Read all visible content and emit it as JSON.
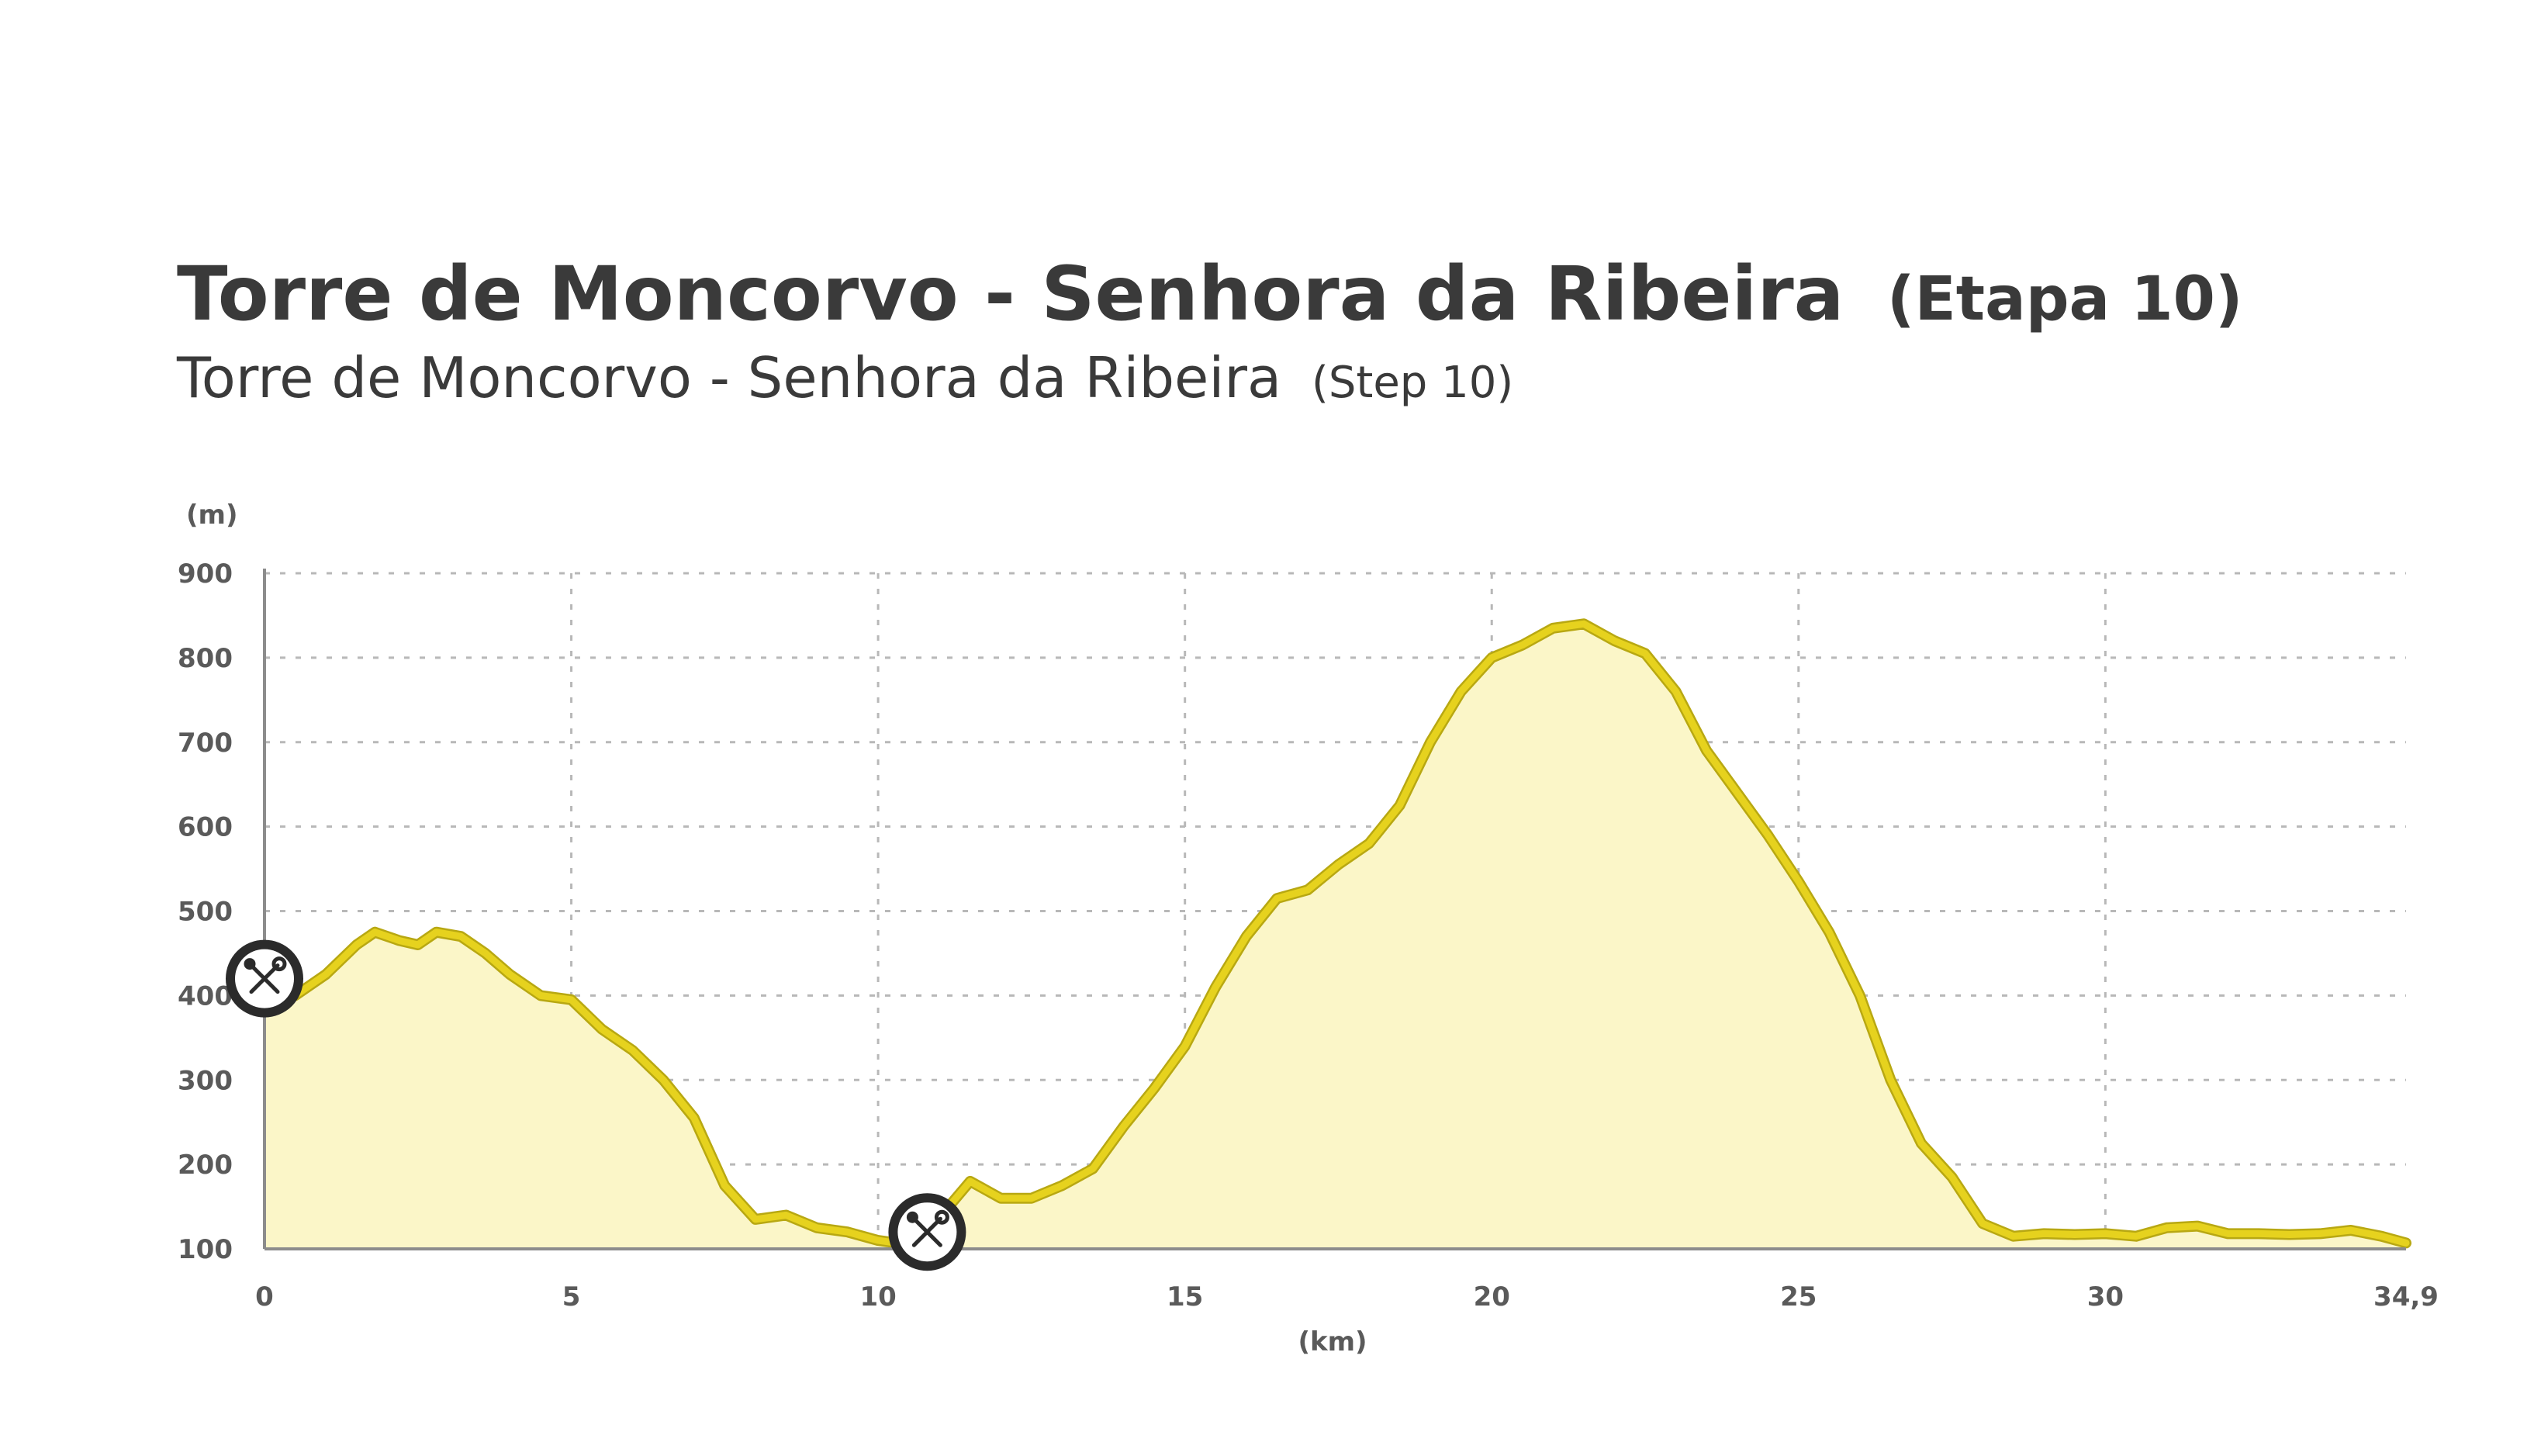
{
  "title": {
    "main": "Torre de Moncorvo - Senhora da Ribeira",
    "main_suffix": "(Etapa 10)",
    "sub": "Torre de Moncorvo - Senhora da Ribeira",
    "sub_suffix": "(Step 10)"
  },
  "colors": {
    "line": "#e6d21e",
    "fill": "#fbf6c8",
    "grid": "#b8b8b8",
    "axis": "#8c8c8c",
    "marker_ring": "#2b2b2b",
    "text": "#3a3a3a"
  },
  "icons": [
    "repair-tools-icon",
    "repair-tools-icon"
  ],
  "chart_data": {
    "type": "area",
    "xlabel": "(km)",
    "ylabel": "(m)",
    "xlim": [
      0,
      34.9
    ],
    "ylim": [
      100,
      900
    ],
    "x_ticks": [
      0,
      5,
      10,
      15,
      20,
      25,
      30,
      34.9
    ],
    "x_tick_labels": [
      "0",
      "5",
      "10",
      "15",
      "20",
      "25",
      "30",
      "34,9"
    ],
    "y_ticks": [
      100,
      200,
      300,
      400,
      500,
      600,
      700,
      800,
      900
    ],
    "y_tick_labels": [
      "100",
      "200",
      "300",
      "400",
      "500",
      "600",
      "700",
      "800",
      "900"
    ],
    "grid": true,
    "x": [
      0,
      0.5,
      1.0,
      1.5,
      1.8,
      2.2,
      2.5,
      2.8,
      3.2,
      3.6,
      4.0,
      4.5,
      5.0,
      5.5,
      6.0,
      6.5,
      7.0,
      7.5,
      8.0,
      8.5,
      9.0,
      9.5,
      10.0,
      10.5,
      10.8,
      11.5,
      12.0,
      12.5,
      13.0,
      13.5,
      14.0,
      14.5,
      15.0,
      15.5,
      16.0,
      16.5,
      17.0,
      17.5,
      18.0,
      18.5,
      19.0,
      19.5,
      20.0,
      20.5,
      21.0,
      21.5,
      22.0,
      22.5,
      23.0,
      23.5,
      24.0,
      24.5,
      25.0,
      25.5,
      26.0,
      26.5,
      27.0,
      27.5,
      28.0,
      28.5,
      29.0,
      29.5,
      30.0,
      30.5,
      31.0,
      31.5,
      32.0,
      32.5,
      33.0,
      33.5,
      34.0,
      34.5,
      34.9
    ],
    "series": [
      {
        "values": [
          410,
          400,
          425,
          460,
          475,
          465,
          460,
          475,
          470,
          450,
          425,
          400,
          395,
          360,
          335,
          300,
          255,
          175,
          135,
          140,
          125,
          120,
          110,
          105,
          120,
          180,
          160,
          160,
          175,
          195,
          245,
          290,
          340,
          410,
          470,
          515,
          525,
          555,
          580,
          625,
          700,
          760,
          800,
          815,
          835,
          840,
          820,
          805,
          760,
          690,
          640,
          590,
          535,
          475,
          400,
          300,
          225,
          185,
          130,
          115,
          118,
          117,
          118,
          115,
          125,
          127,
          118,
          118,
          117,
          118,
          122,
          115,
          107
        ]
      }
    ],
    "markers": [
      {
        "x": 0,
        "y": 420,
        "icon": "repair-tools-icon"
      },
      {
        "x": 10.8,
        "y": 120,
        "icon": "repair-tools-icon"
      }
    ]
  }
}
